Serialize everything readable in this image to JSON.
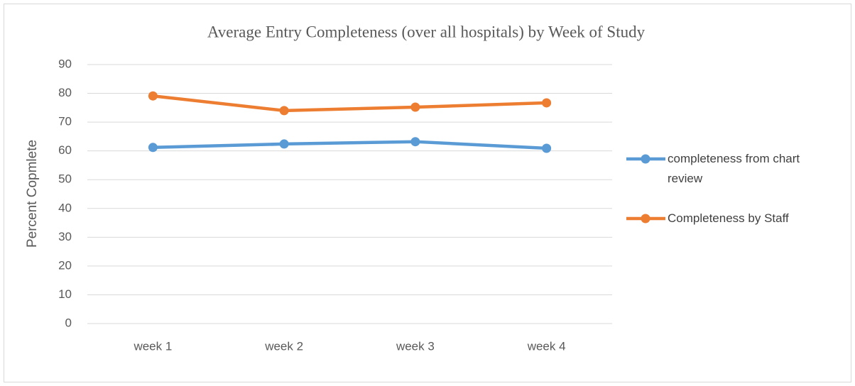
{
  "chart_data": {
    "type": "line",
    "title": "Average Entry Completeness (over all hospitals) by Week of Study",
    "ylabel": "Percent Copmlete",
    "categories": [
      "week 1",
      "week 2",
      "week 3",
      "week 4"
    ],
    "series": [
      {
        "name": "completeness from chart review",
        "color": "#5b9bd5",
        "values": [
          61.2,
          62.4,
          63.2,
          60.9
        ]
      },
      {
        "name": "Completeness by Staff",
        "color": "#ed7d31",
        "values": [
          79.1,
          74.0,
          75.2,
          76.7
        ]
      }
    ],
    "ylim": [
      0,
      90
    ],
    "yticks": [
      0,
      10,
      20,
      30,
      40,
      50,
      60,
      70,
      80,
      90
    ],
    "grid": true,
    "legend": "right"
  }
}
